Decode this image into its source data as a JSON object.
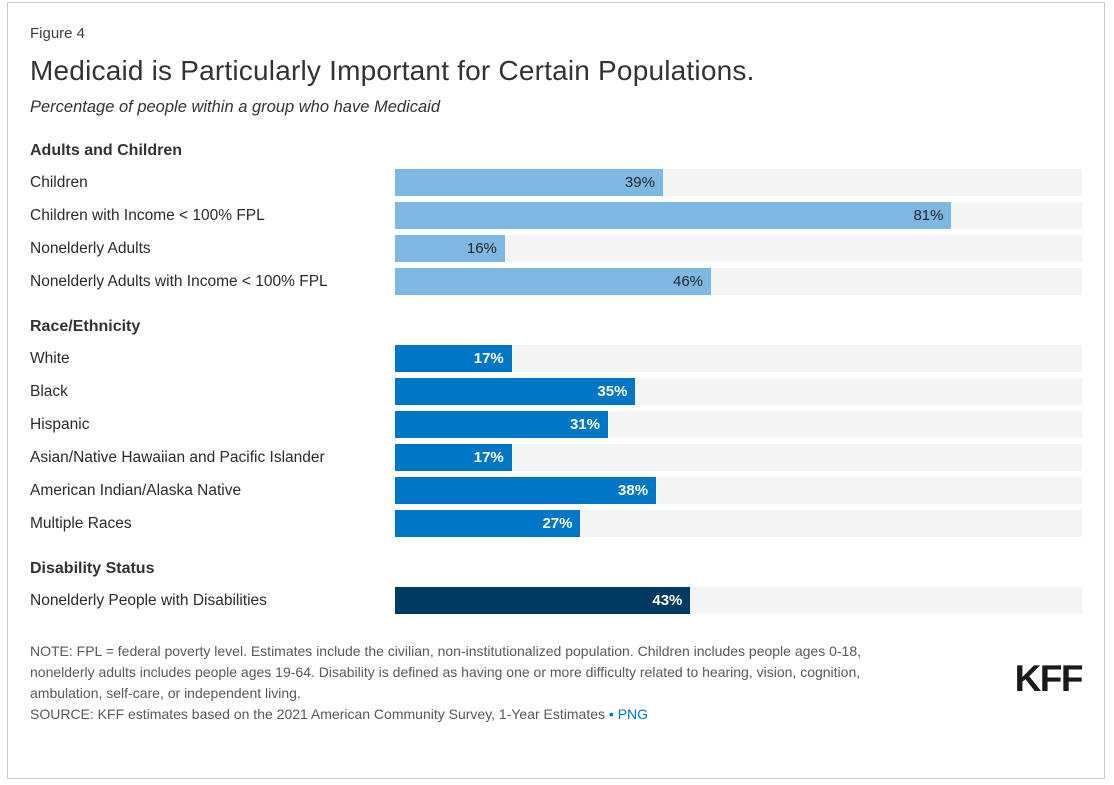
{
  "header": {
    "figure_label": "Figure 4",
    "title": "Medicaid is Particularly Important for Certain Populations.",
    "subtitle": "Percentage of people within a group who have Medicaid"
  },
  "colors": {
    "light_blue": "#7CB8E2",
    "blue": "#0077C6",
    "navy": "#003A63",
    "track_gray": "#F4F4F4",
    "note_gray": "#595959",
    "link_blue": "#0077C6",
    "border_gray": "#C9C9C9",
    "title_gray": "#333333"
  },
  "chart_data": {
    "type": "bar",
    "orientation": "horizontal",
    "unit": "%",
    "xlim": [
      0,
      100
    ],
    "value_labels": "inside-end",
    "groups": [
      {
        "heading": "Adults and Children",
        "bar_color": "#7CB8E2",
        "value_label_color": "#262626",
        "rows": [
          {
            "label": "Children",
            "value": 39
          },
          {
            "label": "Children with Income < 100% FPL",
            "value": 81
          },
          {
            "label": "Nonelderly Adults",
            "value": 16
          },
          {
            "label": "Nonelderly Adults with Income < 100% FPL",
            "value": 46
          }
        ]
      },
      {
        "heading": "Race/Ethnicity",
        "bar_color": "#0077C6",
        "value_label_color": "#FFFFFF",
        "rows": [
          {
            "label": "White",
            "value": 17
          },
          {
            "label": "Black",
            "value": 35
          },
          {
            "label": "Hispanic",
            "value": 31
          },
          {
            "label": "Asian/Native Hawaiian and Pacific Islander",
            "value": 17
          },
          {
            "label": "American Indian/Alaska Native",
            "value": 38
          },
          {
            "label": "Multiple Races",
            "value": 27
          }
        ]
      },
      {
        "heading": "Disability Status",
        "bar_color": "#003A63",
        "value_label_color": "#FFFFFF",
        "rows": [
          {
            "label": "Nonelderly People with Disabilities",
            "value": 43
          }
        ]
      }
    ]
  },
  "footer": {
    "note_lines": [
      "NOTE: FPL = federal poverty level. Estimates include the civilian, non-institutionalized population. Children includes people ages 0-18,",
      "nonelderly adults includes people ages 19-64. Disability is defined as having one or more difficulty related to hearing, vision, cognition,",
      "ambulation, self-care, or independent living.",
      "NOTE (full): NOTE: FPL = federal poverty level. Estimates include the civilian, non-institutionalized population. Children includes people ages 0-18, nonelderly adults includes people ages 19-64. Disability is defined as having one or more difficulty related to hearing, vision, cognition, ambulation, self-care, or independent living."
    ],
    "source_prefix": "SOURCE: KFF estimates based on the 2021 American Community Survey, 1-Year Estimates",
    "separator": "•",
    "link_label": "PNG",
    "logo_text": "KFF"
  }
}
